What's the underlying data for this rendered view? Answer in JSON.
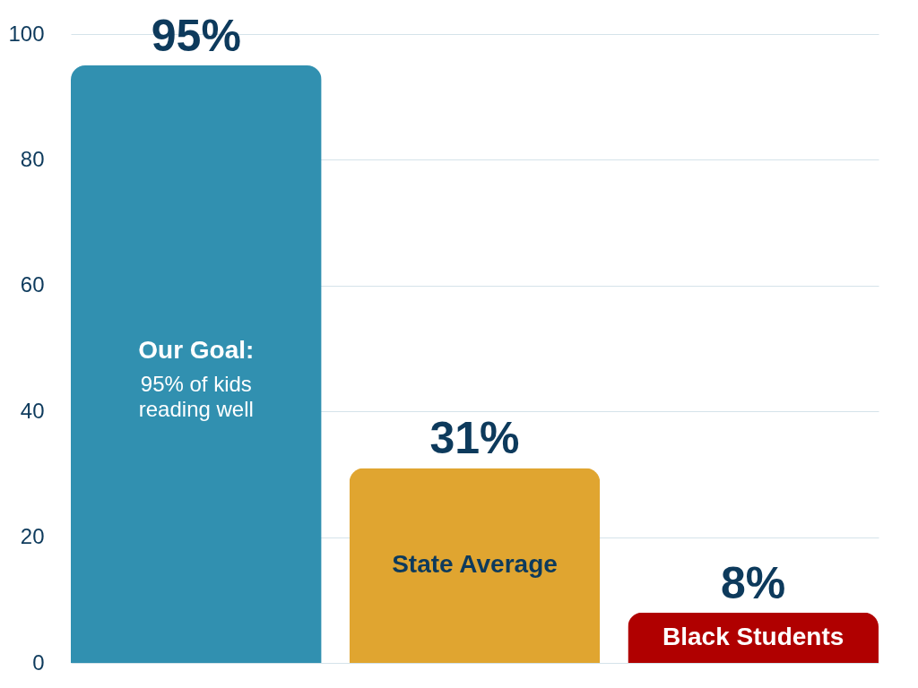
{
  "chart_data": {
    "type": "bar",
    "categories": [
      null,
      "State Average",
      "Black Students"
    ],
    "values": [
      95,
      31,
      8
    ],
    "colors": [
      "#3190b0",
      "#e0a530",
      "#b00000"
    ],
    "value_labels": [
      "95%",
      "31%",
      "8%"
    ],
    "annotations": [
      "Our Goal:",
      "95% of kids reading well"
    ],
    "ylim": [
      0,
      100
    ],
    "yticks": [
      0,
      20,
      40,
      60,
      80,
      100
    ],
    "grid": "y",
    "tick_labels": "y"
  }
}
